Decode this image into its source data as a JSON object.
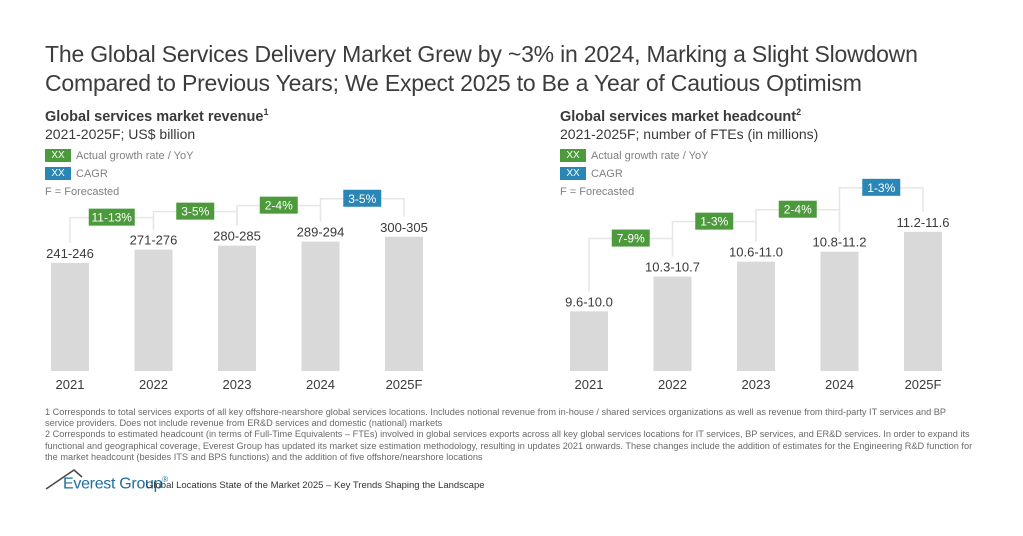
{
  "title": "The Global Services Delivery Market Grew by ~3% in 2024, Marking a Slight Slowdown Compared to Previous Years; We Expect 2025 to Be a Year of Cautious Optimism",
  "legend": {
    "swatch_text": "XX",
    "actual_label": "Actual growth rate / YoY",
    "cagr_label": "CAGR",
    "forecast_note": "F = Forecasted",
    "colors": {
      "actual": "#4c9a3c",
      "cagr": "#2a86b5",
      "bar": "#d9d9d9"
    }
  },
  "chart_data": [
    {
      "type": "bar",
      "title": "Global services market revenue",
      "title_footnote": "1",
      "subtitle": "2021-2025F; US$ billion",
      "categories": [
        "2021",
        "2022",
        "2023",
        "2024",
        "2025F"
      ],
      "ranges": [
        [
          241,
          246
        ],
        [
          271,
          276
        ],
        [
          280,
          285
        ],
        [
          289,
          294
        ],
        [
          300,
          305
        ]
      ],
      "value_labels": [
        "241-246",
        "271-276",
        "280-285",
        "289-294",
        "300-305"
      ],
      "growth_labels": [
        {
          "from": "2021",
          "to": "2022",
          "label": "11-13%",
          "kind": "actual"
        },
        {
          "from": "2022",
          "to": "2023",
          "label": "3-5%",
          "kind": "actual"
        },
        {
          "from": "2023",
          "to": "2024",
          "label": "2-4%",
          "kind": "actual"
        },
        {
          "from": "2024",
          "to": "2025F",
          "label": "3-5%",
          "kind": "cagr"
        }
      ],
      "ylim": [
        0,
        320
      ]
    },
    {
      "type": "bar",
      "title": "Global services market headcount",
      "title_footnote": "2",
      "subtitle": "2021-2025F; number of FTEs (in millions)",
      "categories": [
        "2021",
        "2022",
        "2023",
        "2024",
        "2025F"
      ],
      "ranges": [
        [
          9.6,
          10.0
        ],
        [
          10.3,
          10.7
        ],
        [
          10.6,
          11.0
        ],
        [
          10.8,
          11.2
        ],
        [
          11.2,
          11.6
        ]
      ],
      "value_labels": [
        "9.6-10.0",
        "10.3-10.7",
        "10.6-11.0",
        "10.8-11.2",
        "11.2-11.6"
      ],
      "growth_labels": [
        {
          "from": "2021",
          "to": "2022",
          "label": "7-9%",
          "kind": "actual"
        },
        {
          "from": "2022",
          "to": "2023",
          "label": "1-3%",
          "kind": "actual"
        },
        {
          "from": "2023",
          "to": "2024",
          "label": "2-4%",
          "kind": "actual"
        },
        {
          "from": "2024",
          "to": "2025F",
          "label": "1-3%",
          "kind": "cagr"
        }
      ],
      "ylim": [
        8.6,
        12.0
      ]
    }
  ],
  "footnotes": [
    "1 Corresponds to total services exports of all key offshore-nearshore global services locations. Includes notional revenue from in-house / shared services organizations as well as revenue from third-party IT services and BP service providers. Does not include revenue from ER&D services and domestic (national) markets",
    "2 Corresponds to estimated headcount (in terms of Full-Time Equivalents – FTEs) involved in global services exports across all key global services locations for IT services, BP services, and ER&D services. In order to expand its functional and geographical coverage, Everest Group has updated its market size estimation methodology, resulting in updates 2021 onwards. These changes include the addition of estimates for the Engineering R&D function for the market headcount (besides ITS and BPS functions) and the addition of five offshore/nearshore locations"
  ],
  "footer": {
    "logo_text": "Everest Group",
    "logo_mark": "®",
    "caption": "Global Locations State of the Market 2025 – Key Trends Shaping the Landscape"
  }
}
